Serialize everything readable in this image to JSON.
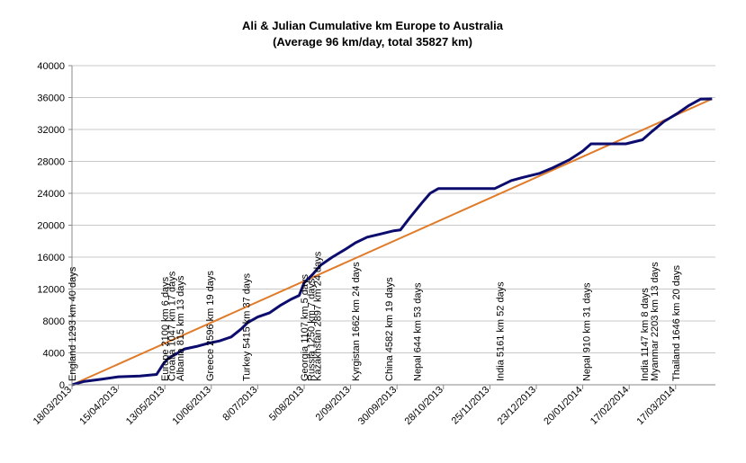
{
  "chart_data": {
    "type": "line",
    "title": "Ali & Julian Cumulative km Europe to Australia",
    "subtitle": "(Average 96 km/day, total 35827 km)",
    "xlabel": "",
    "ylabel": "",
    "ylim": [
      0,
      40000
    ],
    "yticks": [
      0,
      4000,
      8000,
      12000,
      16000,
      20000,
      24000,
      28000,
      32000,
      36000,
      40000
    ],
    "xlim": [
      "2013-03-18",
      "2014-04-10"
    ],
    "xticks": [
      "18/03/2013",
      "15/04/2013",
      "13/05/2013",
      "10/06/2013",
      "8/07/2013",
      "5/08/2013",
      "2/09/2013",
      "30/09/2013",
      "28/10/2013",
      "25/11/2013",
      "23/12/2013",
      "20/01/2014",
      "17/02/2014",
      "17/03/2014"
    ],
    "grid": true,
    "legend": "none",
    "series": [
      {
        "color": "#0c0c6e",
        "points": [
          [
            "2013-03-18",
            0
          ],
          [
            "2013-03-25",
            400
          ],
          [
            "2013-04-05",
            700
          ],
          [
            "2013-04-15",
            1000
          ],
          [
            "2013-04-28",
            1100
          ],
          [
            "2013-05-08",
            1300
          ],
          [
            "2013-05-12",
            2600
          ],
          [
            "2013-05-15",
            3300
          ],
          [
            "2013-05-20",
            3900
          ],
          [
            "2013-05-25",
            4500
          ],
          [
            "2013-06-01",
            4800
          ],
          [
            "2013-06-08",
            5200
          ],
          [
            "2013-06-15",
            5500
          ],
          [
            "2013-06-22",
            6000
          ],
          [
            "2013-06-28",
            7000
          ],
          [
            "2013-07-02",
            7800
          ],
          [
            "2013-07-08",
            8500
          ],
          [
            "2013-07-15",
            9000
          ],
          [
            "2013-07-22",
            10000
          ],
          [
            "2013-07-28",
            10700
          ],
          [
            "2013-08-02",
            11200
          ],
          [
            "2013-08-05",
            12800
          ],
          [
            "2013-08-10",
            13800
          ],
          [
            "2013-08-15",
            15000
          ],
          [
            "2013-08-22",
            16000
          ],
          [
            "2013-08-30",
            17000
          ],
          [
            "2013-09-05",
            17800
          ],
          [
            "2013-09-12",
            18500
          ],
          [
            "2013-09-20",
            18900
          ],
          [
            "2013-09-28",
            19300
          ],
          [
            "2013-10-02",
            19400
          ],
          [
            "2013-10-08",
            21000
          ],
          [
            "2013-10-15",
            22800
          ],
          [
            "2013-10-20",
            24000
          ],
          [
            "2013-10-25",
            24600
          ],
          [
            "2013-11-28",
            24600
          ],
          [
            "2013-12-08",
            25600
          ],
          [
            "2013-12-15",
            26000
          ],
          [
            "2013-12-25",
            26500
          ],
          [
            "2014-01-02",
            27200
          ],
          [
            "2014-01-12",
            28200
          ],
          [
            "2014-01-20",
            29300
          ],
          [
            "2014-01-25",
            30200
          ],
          [
            "2014-02-15",
            30200
          ],
          [
            "2014-02-25",
            30700
          ],
          [
            "2014-03-03",
            31800
          ],
          [
            "2014-03-10",
            33000
          ],
          [
            "2014-03-18",
            34000
          ],
          [
            "2014-03-25",
            35000
          ],
          [
            "2014-04-01",
            35800
          ],
          [
            "2014-04-08",
            35827
          ]
        ]
      },
      {
        "color": "#e07b2a",
        "points": [
          [
            "2013-03-18",
            0
          ],
          [
            "2014-04-08",
            35827
          ]
        ]
      }
    ],
    "annotations": [
      {
        "text": "England 1293 km 40 days",
        "date": "2013-03-18"
      },
      {
        "text": "Europe 2100 km 6 days",
        "date": "2013-05-13"
      },
      {
        "text": "Croatia 1047 km 17 days",
        "date": "2013-05-17"
      },
      {
        "text": "Albania 815 km 13 days",
        "date": "2013-05-22"
      },
      {
        "text": "Greece 2596 km 19 days",
        "date": "2013-06-09"
      },
      {
        "text": "Turkey 5415 km 37 days",
        "date": "2013-07-01"
      },
      {
        "text": "Georgia 1107 km 5 days",
        "date": "2013-08-05"
      },
      {
        "text": "Russia 1250 km 7 days",
        "date": "2013-08-09"
      },
      {
        "text": "Kazakhstan 2897 km 24 days",
        "date": "2013-08-13"
      },
      {
        "text": "Kyrgistan 1662 km 24 days",
        "date": "2013-09-05"
      },
      {
        "text": "China 4582 km 19 days",
        "date": "2013-09-25"
      },
      {
        "text": "Nepal 644 km 53 days",
        "date": "2013-10-12"
      },
      {
        "text": "India 5161 km 52 days",
        "date": "2013-12-01"
      },
      {
        "text": "Nepal 910 km 31 days",
        "date": "2014-01-22"
      },
      {
        "text": "India 1147 km 8 days",
        "date": "2014-02-26"
      },
      {
        "text": "Myanmar 2203 km 13 days",
        "date": "2014-03-04"
      },
      {
        "text": "Thailand 1646 km 20 days",
        "date": "2014-03-17"
      }
    ]
  }
}
